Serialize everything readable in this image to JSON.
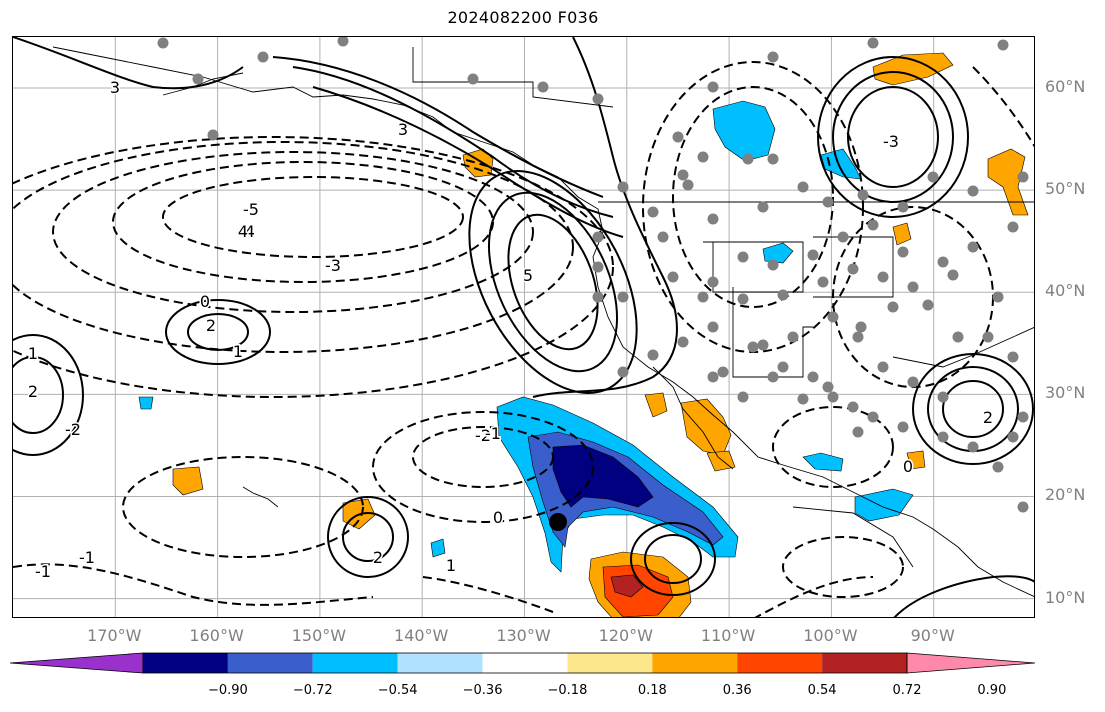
{
  "title": "2024082200 F036",
  "map": {
    "projection": "Plate Carree",
    "lon_range": [
      -180,
      -80
    ],
    "lat_range": [
      8,
      65
    ],
    "lat_ticks": [
      {
        "lat": 60,
        "label": "60°N"
      },
      {
        "lat": 50,
        "label": "50°N"
      },
      {
        "lat": 40,
        "label": "40°N"
      },
      {
        "lat": 30,
        "label": "30°N"
      },
      {
        "lat": 20,
        "label": "20°N"
      },
      {
        "lat": 10,
        "label": "10°N"
      }
    ],
    "lon_ticks": [
      {
        "lon": -170,
        "label": "170°W"
      },
      {
        "lon": -160,
        "label": "160°W"
      },
      {
        "lon": -150,
        "label": "150°W"
      },
      {
        "lon": -140,
        "label": "140°W"
      },
      {
        "lon": -130,
        "label": "130°W"
      },
      {
        "lon": -120,
        "label": "120°W"
      },
      {
        "lon": -110,
        "label": "110°W"
      },
      {
        "lon": -100,
        "label": "100°W"
      },
      {
        "lon": -90,
        "label": "90°W"
      }
    ],
    "grid": true,
    "station_marker_color": "#808080",
    "highlight_marker_color": "#000000",
    "contour_labels": [
      "-5",
      "-4",
      "-3",
      "-2",
      "-1",
      "0",
      "1",
      "2",
      "3",
      "4",
      "5"
    ]
  },
  "colorbar": {
    "extend": "both",
    "colors": [
      "#9932cc",
      "#000080",
      "#3a5fcd",
      "#00bfff",
      "#b0e2ff",
      "#ffffff",
      "#fde78b",
      "#ffa500",
      "#ff4500",
      "#b22222",
      "#ff89aa"
    ],
    "boundaries": [
      -0.9,
      -0.72,
      -0.54,
      -0.36,
      -0.18,
      0.18,
      0.36,
      0.54,
      0.72,
      0.9
    ],
    "tick_labels": [
      "−0.90",
      "−0.72",
      "−0.54",
      "−0.36",
      "−0.18",
      "0.18",
      "0.36",
      "0.54",
      "0.72",
      "0.90"
    ]
  }
}
